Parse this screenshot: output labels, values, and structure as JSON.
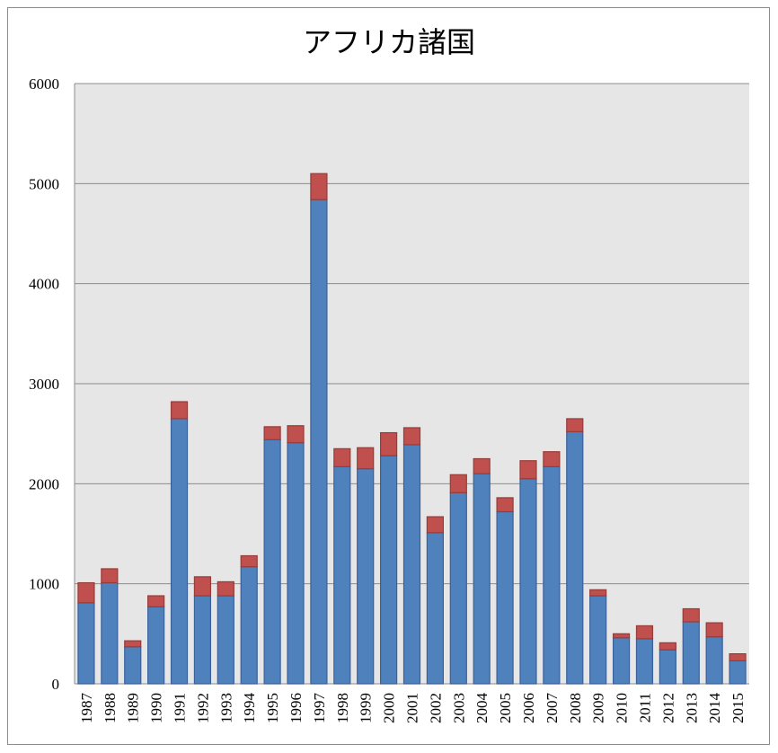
{
  "chart_data": {
    "type": "bar",
    "stacked": true,
    "title": "アフリカ諸国",
    "xlabel": "",
    "ylabel": "",
    "ylim": [
      0,
      6000
    ],
    "yticks": [
      0,
      1000,
      2000,
      3000,
      4000,
      5000,
      6000
    ],
    "grid": true,
    "legend": "none",
    "categories": [
      "1987",
      "1988",
      "1989",
      "1990",
      "1991",
      "1992",
      "1993",
      "1994",
      "1995",
      "1996",
      "1997",
      "1998",
      "1999",
      "2000",
      "2001",
      "2002",
      "2003",
      "2004",
      "2005",
      "2006",
      "2007",
      "2008",
      "2009",
      "2010",
      "2011",
      "2012",
      "2013",
      "2014",
      "2015"
    ],
    "series": [
      {
        "color": "#4f81bd",
        "values": [
          810,
          1010,
          370,
          770,
          2650,
          880,
          880,
          1170,
          2440,
          2410,
          4840,
          2170,
          2150,
          2280,
          2390,
          1510,
          1910,
          2100,
          1720,
          2050,
          2170,
          2520,
          880,
          460,
          450,
          340,
          620,
          470,
          230
        ]
      },
      {
        "color": "#c0504d",
        "values": [
          200,
          140,
          60,
          110,
          170,
          190,
          140,
          110,
          130,
          170,
          260,
          180,
          210,
          230,
          170,
          160,
          180,
          150,
          140,
          180,
          150,
          130,
          60,
          40,
          130,
          70,
          130,
          140,
          70
        ]
      }
    ],
    "plot_background": "#e6e6e6"
  }
}
